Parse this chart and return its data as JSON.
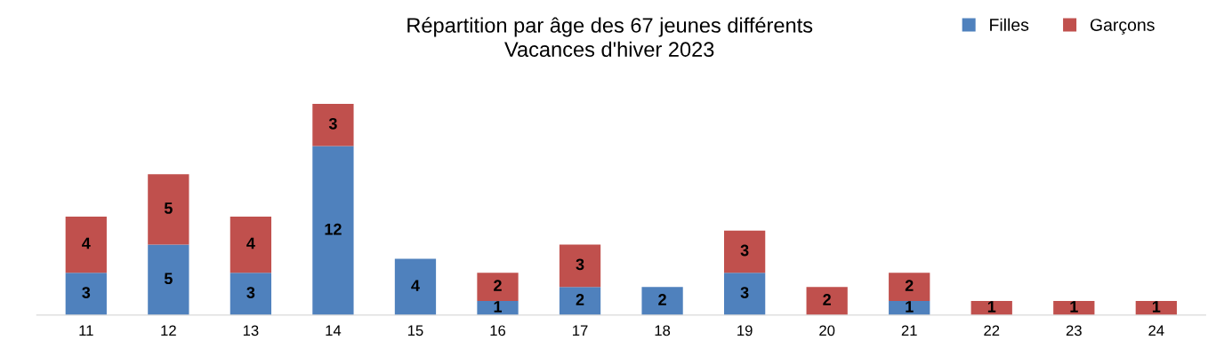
{
  "chart_data": {
    "type": "bar",
    "title": "Répartition par âge des 67 jeunes différents\nVacances d'hiver 2023",
    "categories": [
      "11",
      "12",
      "13",
      "14",
      "15",
      "16",
      "17",
      "18",
      "19",
      "20",
      "21",
      "22",
      "23",
      "24"
    ],
    "series": [
      {
        "name": "Filles",
        "color": "#4f81bd",
        "values": [
          3,
          5,
          3,
          12,
          4,
          1,
          2,
          2,
          3,
          null,
          1,
          null,
          null,
          null
        ]
      },
      {
        "name": "Garçons",
        "color": "#c0504d",
        "values": [
          4,
          5,
          4,
          3,
          null,
          2,
          3,
          null,
          3,
          2,
          2,
          1,
          1,
          1
        ]
      }
    ],
    "stacked": true,
    "data_labels": true,
    "grid": false,
    "legend": "top right"
  }
}
